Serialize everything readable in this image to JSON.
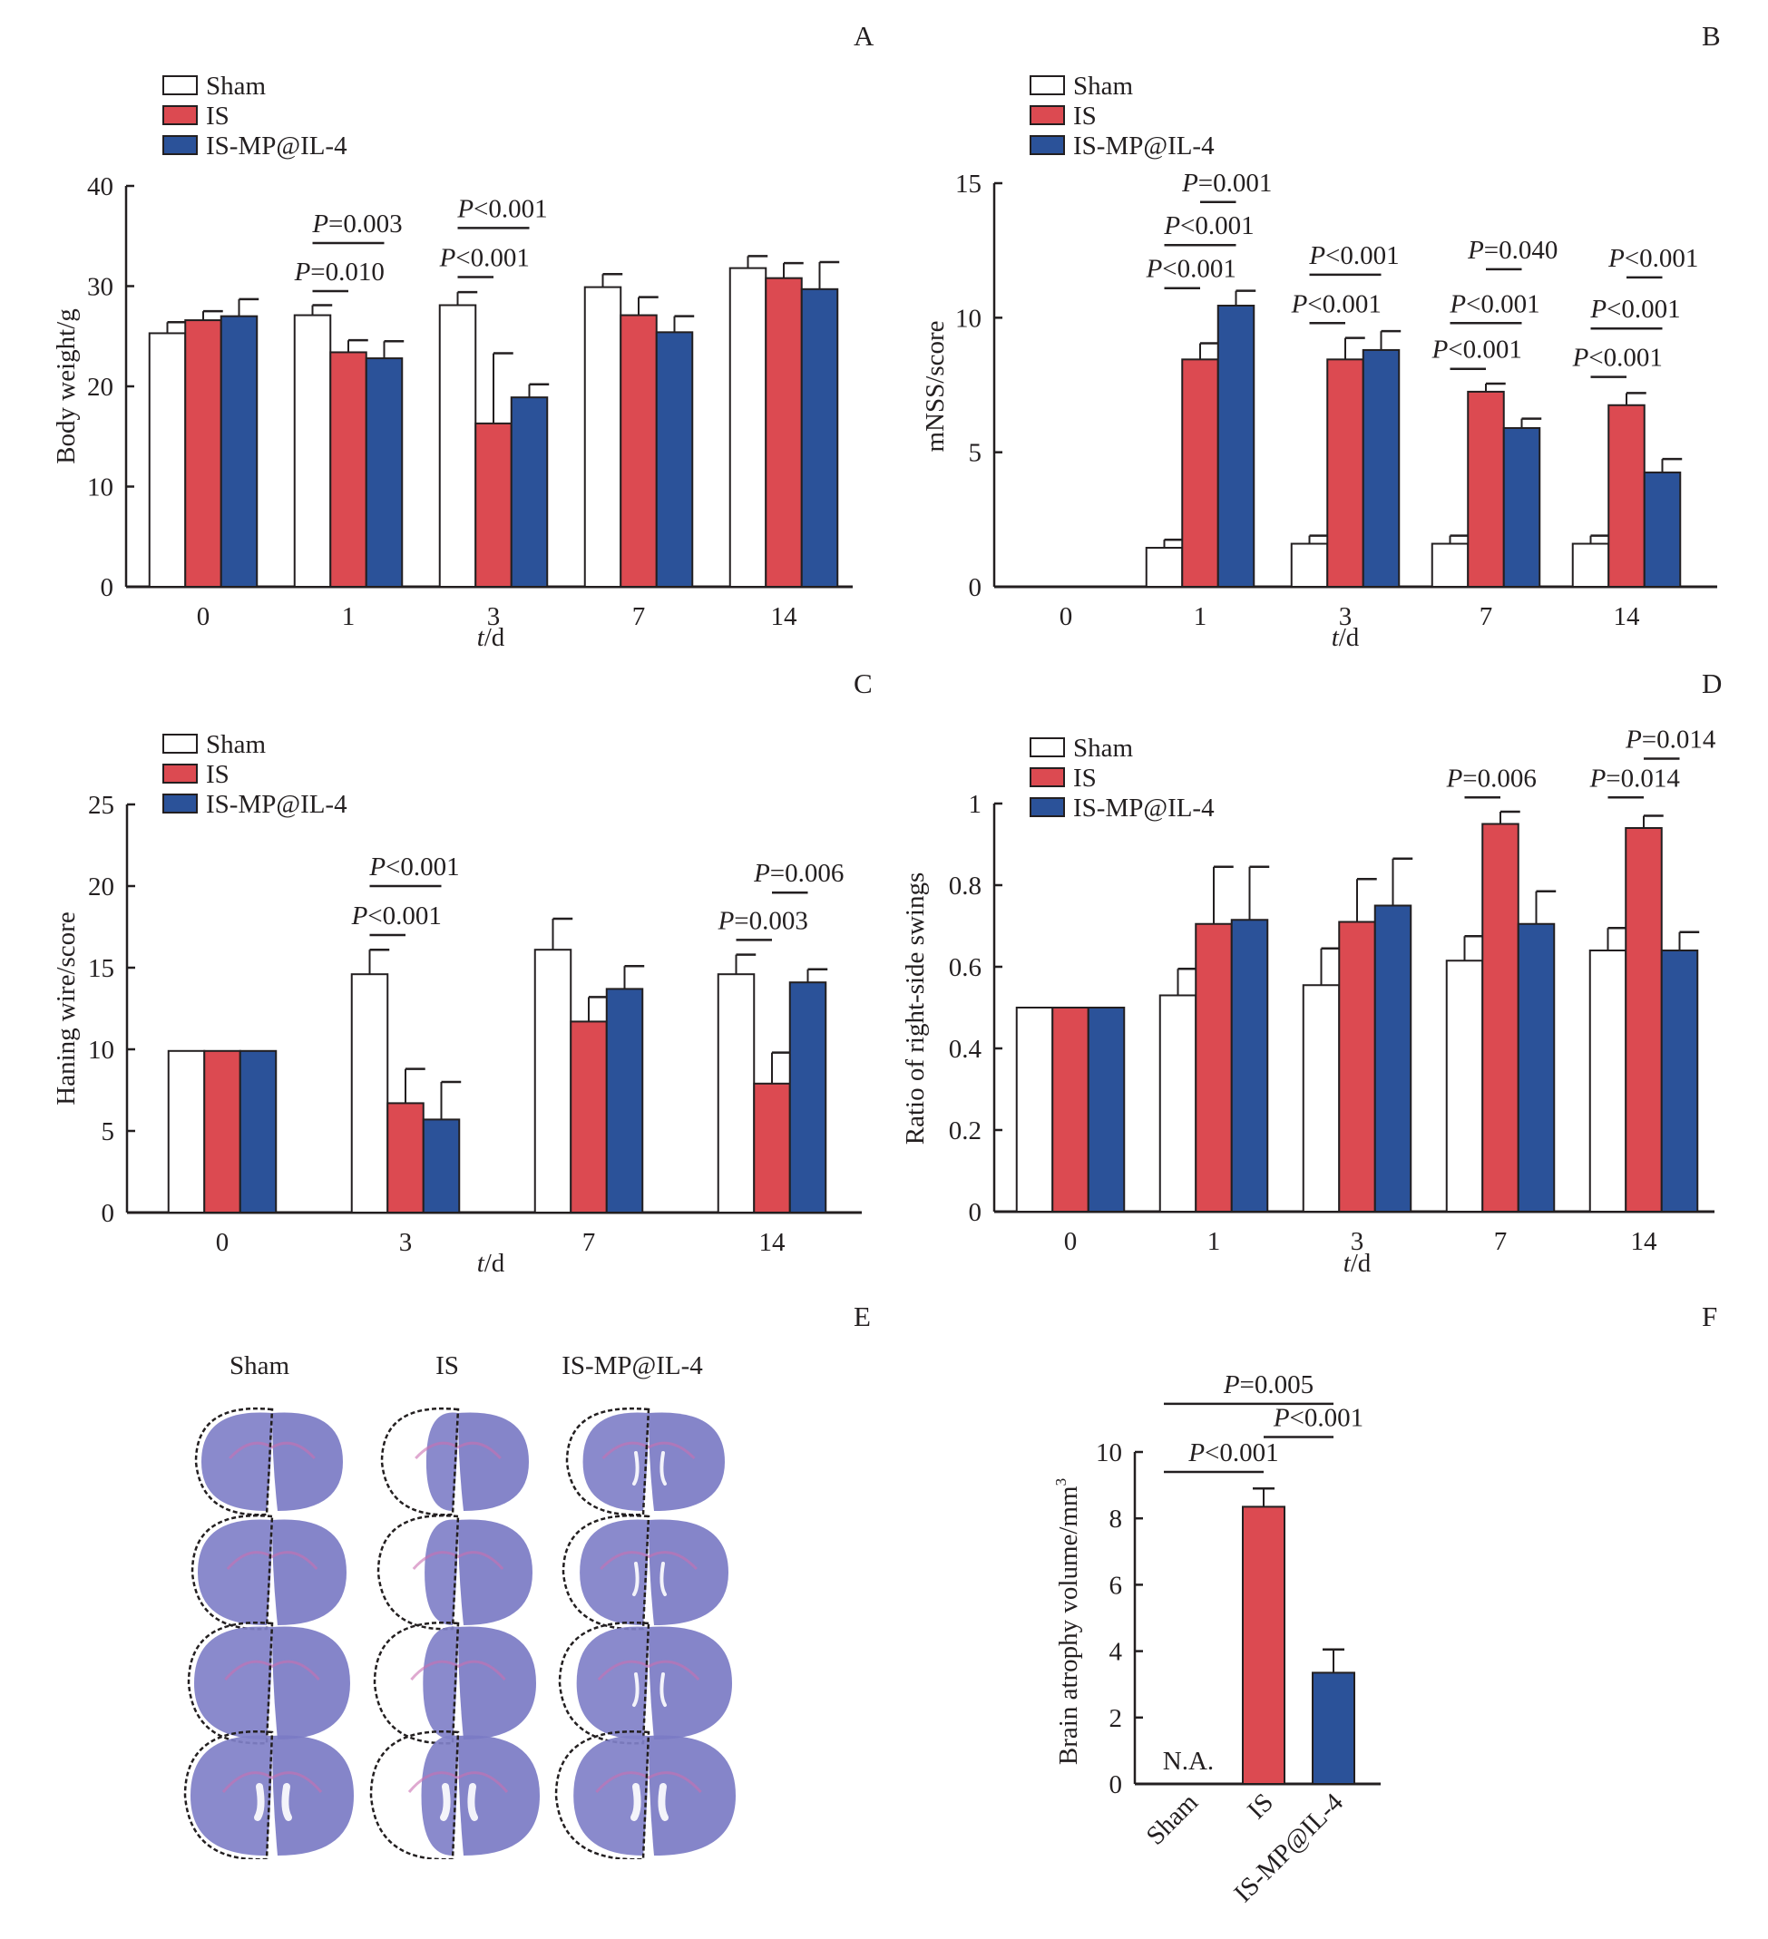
{
  "figure": {
    "panel_labels": [
      "A",
      "B",
      "C",
      "D",
      "E",
      "F"
    ],
    "colors": {
      "Sham": "#ffffff",
      "IS": "#dc4a51",
      "IS-MP@IL-4": "#2b5299",
      "outline": "#231f20"
    }
  },
  "panel_e": {
    "column_labels": [
      "Sham",
      "IS",
      "IS-MP@IL-4"
    ],
    "rows": 4,
    "description": "Coronal brain sections stained, ipsilateral hemisphere outlined with dashed line"
  },
  "chart_data": [
    {
      "id": "A",
      "type": "bar",
      "legend": [
        "Sham",
        "IS",
        "IS-MP@IL-4"
      ],
      "legend_position": "top-left",
      "categories": [
        "0",
        "1",
        "3",
        "7",
        "14"
      ],
      "xlabel_italic": "t",
      "xlabel_rest": "/d",
      "ylabel": "Body weight/g",
      "ylim": [
        0,
        40
      ],
      "yticks": [
        0,
        10,
        20,
        30,
        40
      ],
      "series": [
        {
          "name": "Sham",
          "values": [
            25.3,
            27.1,
            28.1,
            29.9,
            31.8
          ],
          "errors": [
            1.1,
            1.0,
            1.3,
            1.3,
            1.2
          ]
        },
        {
          "name": "IS",
          "values": [
            26.6,
            23.4,
            16.3,
            27.1,
            30.8
          ],
          "errors": [
            0.9,
            1.2,
            7.0,
            1.8,
            1.5
          ]
        },
        {
          "name": "IS-MP@IL-4",
          "values": [
            27.0,
            22.8,
            18.9,
            25.4,
            29.7
          ],
          "errors": [
            1.7,
            1.7,
            1.3,
            1.6,
            2.7
          ]
        }
      ],
      "annotations": [
        {
          "text": "P=0.010",
          "p": "P",
          "rest": "=0.010",
          "cat": 1,
          "from": 0,
          "to": 1,
          "y": 29.5
        },
        {
          "text": "P=0.003",
          "p": "P",
          "rest": "=0.003",
          "cat": 1,
          "from": 0,
          "to": 2,
          "y": 34.3
        },
        {
          "text": "P<0.001",
          "p": "P",
          "rest": "<0.001",
          "cat": 2,
          "from": 0,
          "to": 1,
          "y": 30.9
        },
        {
          "text": "P<0.001",
          "p": "P",
          "rest": "<0.001",
          "cat": 2,
          "from": 0,
          "to": 2,
          "y": 35.8
        }
      ]
    },
    {
      "id": "B",
      "type": "bar",
      "legend": [
        "Sham",
        "IS",
        "IS-MP@IL-4"
      ],
      "legend_position": "top-left",
      "categories": [
        "0",
        "1",
        "3",
        "7",
        "14"
      ],
      "xlabel_italic": "t",
      "xlabel_rest": "/d",
      "ylabel": "mNSS/score",
      "ylim": [
        0,
        15
      ],
      "yticks": [
        0,
        5,
        10,
        15
      ],
      "series": [
        {
          "name": "Sham",
          "values": [
            0,
            1.45,
            1.6,
            1.6,
            1.6
          ],
          "errors": [
            0,
            0.3,
            0.3,
            0.3,
            0.3
          ]
        },
        {
          "name": "IS",
          "values": [
            0,
            8.45,
            8.45,
            7.25,
            6.75
          ],
          "errors": [
            0,
            0.6,
            0.8,
            0.3,
            0.45
          ]
        },
        {
          "name": "IS-MP@IL-4",
          "values": [
            0,
            10.45,
            8.8,
            5.9,
            4.25
          ],
          "errors": [
            0,
            0.55,
            0.7,
            0.35,
            0.5
          ]
        }
      ],
      "annotations": [
        {
          "text": "P<0.001",
          "p": "P",
          "rest": "<0.001",
          "cat": 1,
          "from": 0,
          "to": 1,
          "y": 11.1
        },
        {
          "text": "P<0.001",
          "p": "P",
          "rest": "<0.001",
          "cat": 1,
          "from": 0,
          "to": 2,
          "y": 12.7
        },
        {
          "text": "P=0.001",
          "p": "P",
          "rest": "=0.001",
          "cat": 1,
          "from": 1,
          "to": 2,
          "y": 14.3
        },
        {
          "text": "P<0.001",
          "p": "P",
          "rest": "<0.001",
          "cat": 2,
          "from": 0,
          "to": 1,
          "y": 9.8
        },
        {
          "text": "P<0.001",
          "p": "P",
          "rest": "<0.001",
          "cat": 2,
          "from": 0,
          "to": 2,
          "y": 11.6
        },
        {
          "text": "P<0.001",
          "p": "P",
          "rest": "<0.001",
          "cat": 3,
          "from": 0,
          "to": 1,
          "y": 8.1
        },
        {
          "text": "P<0.001",
          "p": "P",
          "rest": "<0.001",
          "cat": 3,
          "from": 0,
          "to": 2,
          "y": 9.8
        },
        {
          "text": "P=0.040",
          "p": "P",
          "rest": "=0.040",
          "cat": 3,
          "from": 1,
          "to": 2,
          "y": 11.8
        },
        {
          "text": "P<0.001",
          "p": "P",
          "rest": "<0.001",
          "cat": 4,
          "from": 0,
          "to": 1,
          "y": 7.8
        },
        {
          "text": "P<0.001",
          "p": "P",
          "rest": "<0.001",
          "cat": 4,
          "from": 0,
          "to": 2,
          "y": 9.6
        },
        {
          "text": "P<0.001",
          "p": "P",
          "rest": "<0.001",
          "cat": 4,
          "from": 1,
          "to": 2,
          "y": 11.5
        }
      ]
    },
    {
      "id": "C",
      "type": "bar",
      "legend": [
        "Sham",
        "IS",
        "IS-MP@IL-4"
      ],
      "legend_position": "top-left",
      "categories": [
        "0",
        "3",
        "7",
        "14"
      ],
      "xlabel_italic": "t",
      "xlabel_rest": "/d",
      "ylabel": "Haning wire/score",
      "ylim": [
        0,
        25
      ],
      "yticks": [
        0,
        5,
        10,
        15,
        20,
        25
      ],
      "series": [
        {
          "name": "Sham",
          "values": [
            9.9,
            14.6,
            16.1,
            14.6
          ],
          "errors": [
            0,
            1.5,
            1.9,
            1.2
          ]
        },
        {
          "name": "IS",
          "values": [
            9.9,
            6.7,
            11.7,
            7.9
          ],
          "errors": [
            0,
            2.1,
            1.5,
            1.9
          ]
        },
        {
          "name": "IS-MP@IL-4",
          "values": [
            9.9,
            5.7,
            13.7,
            14.1
          ],
          "errors": [
            0,
            2.3,
            1.4,
            0.8
          ]
        }
      ],
      "annotations": [
        {
          "text": "P<0.001",
          "p": "P",
          "rest": "<0.001",
          "cat": 1,
          "from": 0,
          "to": 1,
          "y": 17.0
        },
        {
          "text": "P<0.001",
          "p": "P",
          "rest": "<0.001",
          "cat": 1,
          "from": 0,
          "to": 2,
          "y": 20.0
        },
        {
          "text": "P=0.003",
          "p": "P",
          "rest": "=0.003",
          "cat": 3,
          "from": 0,
          "to": 1,
          "y": 16.7
        },
        {
          "text": "P=0.006",
          "p": "P",
          "rest": "=0.006",
          "cat": 3,
          "from": 1,
          "to": 2,
          "y": 19.6
        }
      ]
    },
    {
      "id": "D",
      "type": "bar",
      "legend": [
        "Sham",
        "IS",
        "IS-MP@IL-4"
      ],
      "legend_position": "top-left",
      "categories": [
        "0",
        "1",
        "3",
        "7",
        "14"
      ],
      "xlabel_italic": "t",
      "xlabel_rest": "/d",
      "ylabel": "Ratio of right-side swings",
      "ylim": [
        0,
        1.0
      ],
      "yticks": [
        0,
        0.2,
        0.4,
        0.6,
        0.8,
        1.0
      ],
      "series": [
        {
          "name": "Sham",
          "values": [
            0.5,
            0.53,
            0.555,
            0.615,
            0.64
          ],
          "errors": [
            0,
            0.065,
            0.09,
            0.06,
            0.055
          ]
        },
        {
          "name": "IS",
          "values": [
            0.5,
            0.705,
            0.71,
            0.95,
            0.94
          ],
          "errors": [
            0,
            0.14,
            0.105,
            0.03,
            0.03
          ]
        },
        {
          "name": "IS-MP@IL-4",
          "values": [
            0.5,
            0.715,
            0.75,
            0.705,
            0.64
          ],
          "errors": [
            0,
            0.13,
            0.115,
            0.08,
            0.045
          ]
        }
      ],
      "annotations": [
        {
          "text": "P=0.006",
          "p": "P",
          "rest": "=0.006",
          "cat": 3,
          "from": 0,
          "to": 1,
          "y": 1.015
        },
        {
          "text": "P=0.014",
          "p": "P",
          "rest": "=0.014",
          "cat": 4,
          "from": 0,
          "to": 1,
          "y": 1.015
        },
        {
          "text": "P=0.014",
          "p": "P",
          "rest": "=0.014",
          "cat": 4,
          "from": 1,
          "to": 2,
          "y": 1.11
        }
      ]
    },
    {
      "id": "F",
      "type": "bar",
      "categories": [
        "Sham",
        "IS",
        "IS-MP@IL-4"
      ],
      "ylabel": "Brain atrophy volume/mm",
      "ylabel_sup": "3",
      "ylim": [
        0,
        10
      ],
      "yticks": [
        0,
        2,
        4,
        6,
        8,
        10
      ],
      "values": [
        null,
        8.35,
        3.35
      ],
      "errors": [
        null,
        0.55,
        0.7
      ],
      "value_labels": [
        "N.A.",
        "",
        ""
      ],
      "annotations": [
        {
          "text": "P<0.001",
          "p": "P",
          "rest": "<0.001",
          "from": 0,
          "to": 1,
          "y": 9.4
        },
        {
          "text": "P<0.001",
          "p": "P",
          "rest": "<0.001",
          "from": 1,
          "to": 2,
          "y": 10.45
        },
        {
          "text": "P=0.005",
          "p": "P",
          "rest": "=0.005",
          "from": 0,
          "to": 2,
          "y": 11.45
        }
      ]
    }
  ]
}
